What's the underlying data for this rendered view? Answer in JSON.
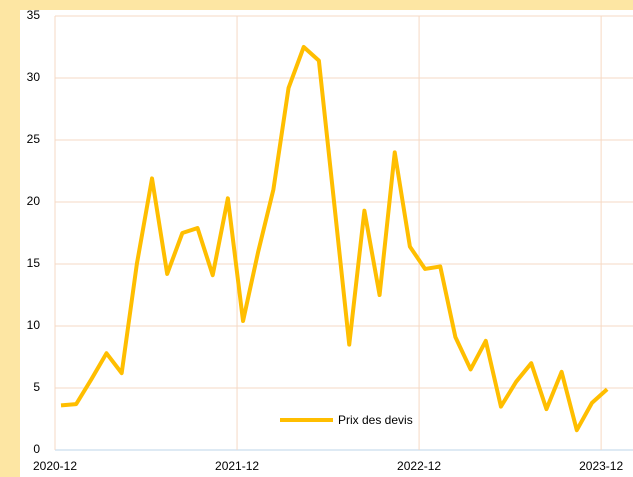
{
  "chart_data": {
    "type": "line",
    "x": [
      "2020-12",
      "2021-01",
      "2021-02",
      "2021-03",
      "2021-04",
      "2021-05",
      "2021-06",
      "2021-07",
      "2021-08",
      "2021-09",
      "2021-10",
      "2021-11",
      "2021-12",
      "2022-01",
      "2022-02",
      "2022-03",
      "2022-04",
      "2022-05",
      "2022-06",
      "2022-07",
      "2022-08",
      "2022-09",
      "2022-10",
      "2022-11",
      "2022-12",
      "2023-01",
      "2023-02",
      "2023-03",
      "2023-04",
      "2023-05",
      "2023-06",
      "2023-07",
      "2023-08",
      "2023-09",
      "2023-10",
      "2023-11",
      "2023-12"
    ],
    "series": [
      {
        "name": "Prix des devis",
        "color": "#ffbe00",
        "values": [
          3.6,
          3.7,
          5.7,
          7.8,
          6.2,
          15,
          21.9,
          14.2,
          17.5,
          17.9,
          14.1,
          20.3,
          10.4,
          16,
          21,
          29.2,
          32.5,
          31.4,
          20,
          8.5,
          19.3,
          12.5,
          24,
          16.4,
          14.6,
          14.8,
          9.1,
          6.5,
          8.8,
          3.5,
          5.5,
          7,
          3.3,
          6.3,
          1.6,
          3.8,
          4.9
        ]
      }
    ],
    "xticks": [
      "2020-12",
      "2021-12",
      "2022-12",
      "2023-12"
    ],
    "ylim": [
      0,
      35
    ],
    "yticks": [
      0,
      5,
      10,
      15,
      20,
      25,
      30,
      35
    ],
    "grid": true,
    "legend": "bottom"
  }
}
